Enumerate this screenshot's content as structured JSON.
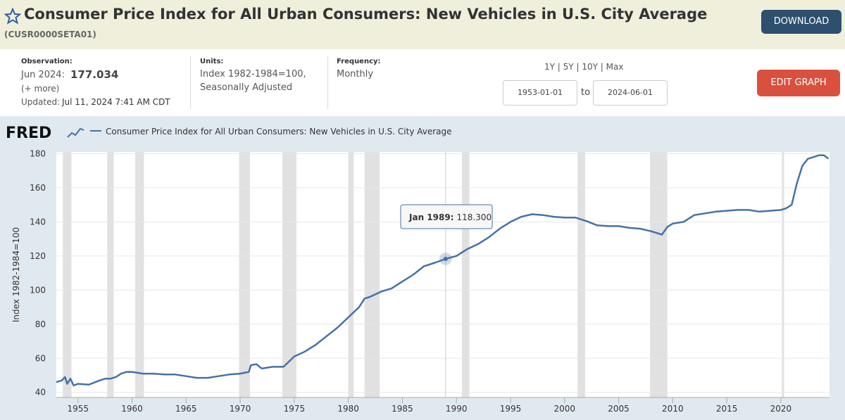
{
  "header": {
    "title": "Consumer Price Index for All Urban Consumers: New Vehicles in U.S. City Average",
    "series_id": "(CUSR0000SETA01)",
    "download": "DOWNLOAD"
  },
  "info": {
    "observation_label": "Observation:",
    "observation_date": "Jun 2024:",
    "observation_value": "177.034",
    "more": "(+ more)",
    "updated_label": "Updated:",
    "updated": "Jul 11, 2024 7:41 AM CDT",
    "units_label": "Units:",
    "units_line1": "Index 1982-1984=100,",
    "units_line2": "Seasonally Adjusted",
    "frequency_label": "Frequency:",
    "frequency": "Monthly"
  },
  "controls": {
    "ranges": [
      "1Y",
      "5Y",
      "10Y",
      "Max"
    ],
    "separator": "|",
    "start": "1953-01-01",
    "to": "to",
    "end": "2024-06-01",
    "edit": "EDIT GRAPH"
  },
  "chart_data": {
    "type": "line",
    "logo": "FRED",
    "y_label": "Index 1982-1984=100",
    "x": [
      1953.0,
      1953.5,
      1953.8,
      1954.0,
      1954.3,
      1954.6,
      1955,
      1956,
      1957,
      1957.5,
      1958,
      1958.5,
      1959,
      1959.5,
      1960,
      1961,
      1962,
      1963,
      1964,
      1965,
      1966,
      1967,
      1968,
      1969,
      1970,
      1970.8,
      1971,
      1971.5,
      1972,
      1973,
      1974,
      1974.5,
      1975,
      1976,
      1977,
      1978,
      1979,
      1980,
      1980.5,
      1981,
      1981.5,
      1982,
      1983,
      1984,
      1985,
      1986,
      1987,
      1988,
      1989.0,
      1990,
      1991,
      1992,
      1993,
      1994,
      1995,
      1996,
      1997,
      1998,
      1999,
      2000,
      2001,
      2002,
      2003,
      2004,
      2005,
      2006,
      2007,
      2008,
      2009,
      2009.5,
      2010,
      2011,
      2012,
      2013,
      2014,
      2015,
      2016,
      2017,
      2018,
      2019,
      2020,
      2020.5,
      2021,
      2021.5,
      2022,
      2022.5,
      2023,
      2023.5,
      2024,
      2024.4
    ],
    "series": [
      {
        "name": "Consumer Price Index for All Urban Consumers: New Vehicles in U.S. City Average",
        "color": "#4572a7",
        "values": [
          46,
          47,
          49,
          45,
          48,
          44,
          45,
          44.5,
          47,
          48,
          48,
          49,
          51,
          52,
          52,
          51,
          51,
          50.5,
          50.5,
          49.5,
          48.5,
          48.5,
          49.5,
          50.5,
          51,
          52,
          56,
          56.5,
          54,
          55,
          55,
          58,
          61,
          64,
          68,
          73,
          78,
          84,
          87,
          90,
          95,
          96,
          99,
          101,
          105,
          109,
          114,
          116,
          118.3,
          120,
          124,
          127,
          131,
          136,
          140,
          143,
          144.5,
          144,
          143,
          142.5,
          142.5,
          140.5,
          138,
          137.5,
          137.5,
          136.5,
          136,
          134.5,
          132.5,
          137,
          139,
          140,
          144,
          145,
          146,
          146.5,
          147,
          147,
          146,
          146.5,
          147,
          148,
          150,
          163,
          173,
          177,
          178,
          179,
          179,
          177
        ]
      }
    ],
    "recessions": [
      [
        1953.6,
        1954.4
      ],
      [
        1957.7,
        1958.3
      ],
      [
        1960.3,
        1961.1
      ],
      [
        1969.9,
        1970.9
      ],
      [
        1973.9,
        1975.2
      ],
      [
        1980.0,
        1980.5
      ],
      [
        1981.5,
        1982.9
      ],
      [
        1990.5,
        1991.2
      ],
      [
        2001.2,
        2001.9
      ],
      [
        2007.9,
        2009.5
      ],
      [
        2020.1,
        2020.3
      ]
    ],
    "recession_color": "#e1e1e1",
    "tooltip": {
      "label": "Jan 1989:",
      "x": 1989.0,
      "value": 118.3,
      "value_label": "118.300"
    },
    "xlim": [
      1953,
      2024.5
    ],
    "ylim": [
      37,
      181
    ],
    "xticks": [
      1955,
      1960,
      1965,
      1970,
      1975,
      1980,
      1985,
      1990,
      1995,
      2000,
      2005,
      2010,
      2015,
      2020
    ],
    "yticks": [
      40,
      60,
      80,
      100,
      120,
      140,
      160,
      180
    ],
    "grid": true
  }
}
